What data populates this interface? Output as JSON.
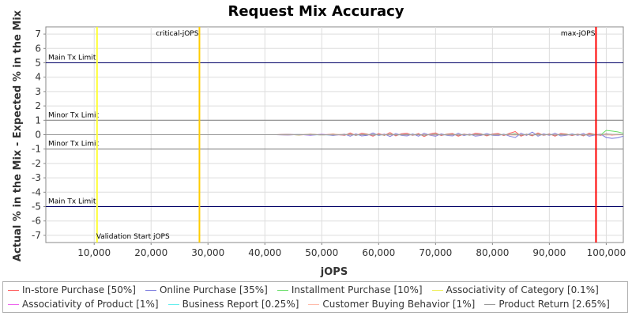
{
  "chart_data": {
    "type": "line",
    "title": "Request Mix Accuracy",
    "xlabel": "jOPS",
    "ylabel": "Actual % in the Mix - Expected % in the Mix",
    "xlim": [
      1500,
      103000
    ],
    "ylim": [
      -7.5,
      7.5
    ],
    "x_ticks": [
      10000,
      20000,
      30000,
      40000,
      50000,
      60000,
      70000,
      80000,
      90000,
      100000
    ],
    "x_tick_labels": [
      "10,000",
      "20,000",
      "30,000",
      "40,000",
      "50,000",
      "60,000",
      "70,000",
      "80,000",
      "90,000",
      "100,000"
    ],
    "y_ticks": [
      7,
      6,
      5,
      4,
      3,
      2,
      1,
      0,
      -1,
      -2,
      -3,
      -4,
      -5,
      -6,
      -7
    ],
    "y_tick_labels": [
      "7",
      "6",
      "5",
      "4",
      "3",
      "2",
      "1",
      "0",
      "-1",
      "-2",
      "-3",
      "-4",
      "-5",
      "-6",
      "-7"
    ],
    "grid": true,
    "legend_position": "bottom",
    "horizontal_lines": [
      {
        "label": "Main Tx Limit",
        "y": 5,
        "color": "#000066"
      },
      {
        "label": "Minor Tx Limit",
        "y": 1,
        "color": "#808080"
      },
      {
        "label": "Minor Tx Limit",
        "y": -1,
        "color": "#808080"
      },
      {
        "label": "Main Tx Limit",
        "y": -5,
        "color": "#000066"
      }
    ],
    "vertical_lines": [
      {
        "label": "Validation Start jOPS",
        "x": 10500,
        "color": "#ffff33"
      },
      {
        "label": "critical-jOPS",
        "x": 28500,
        "color": "#ffcc00"
      },
      {
        "label": "max-jOPS",
        "x": 98200,
        "color": "#ff0000"
      }
    ],
    "x": [
      1500,
      42000,
      44000,
      46000,
      48000,
      50000,
      52000,
      54000,
      55000,
      56000,
      57000,
      58000,
      59000,
      60000,
      61000,
      62000,
      63000,
      64000,
      65000,
      66000,
      67000,
      68000,
      69000,
      70000,
      71000,
      72000,
      73000,
      74000,
      75000,
      76000,
      77000,
      78000,
      79000,
      80000,
      81000,
      82000,
      83000,
      84000,
      85000,
      86000,
      87000,
      88000,
      89000,
      90000,
      91000,
      92000,
      93000,
      94000,
      95000,
      96000,
      97000,
      98000,
      99000,
      100000,
      101000,
      102000,
      103000
    ],
    "series": [
      {
        "name": "In-store Purchase [50%]",
        "color": "#ff5555",
        "values": [
          0,
          0,
          0.03,
          -0.02,
          0.04,
          -0.03,
          0.05,
          -0.05,
          0.12,
          -0.06,
          0.1,
          0.05,
          -0.1,
          0.08,
          -0.05,
          0.15,
          -0.08,
          0.06,
          0.1,
          -0.05,
          0.08,
          -0.12,
          0.05,
          0.12,
          -0.06,
          0.04,
          0.08,
          -0.1,
          0.05,
          -0.04,
          0.1,
          0.06,
          -0.08,
          0.05,
          0.08,
          -0.06,
          0.1,
          0.22,
          -0.1,
          0.05,
          -0.08,
          0.12,
          -0.05,
          0.06,
          -0.1,
          0.08,
          0.04,
          -0.06,
          0.05,
          -0.08,
          0.1,
          0.02,
          -0.05,
          0.06,
          -0.04,
          0.03,
          0
        ]
      },
      {
        "name": "Online Purchase [35%]",
        "color": "#7777dd",
        "values": [
          0,
          0,
          -0.03,
          0.02,
          -0.04,
          0.03,
          -0.05,
          0.05,
          -0.1,
          0.06,
          -0.08,
          -0.04,
          0.12,
          -0.06,
          0.05,
          -0.12,
          0.08,
          -0.05,
          -0.08,
          0.06,
          -0.1,
          0.1,
          -0.04,
          -0.1,
          0.06,
          -0.05,
          -0.08,
          0.1,
          -0.06,
          0.05,
          -0.1,
          -0.05,
          0.08,
          -0.05,
          -0.06,
          0.05,
          -0.1,
          -0.2,
          0.1,
          -0.05,
          0.18,
          -0.1,
          0.06,
          -0.05,
          0.1,
          -0.08,
          -0.04,
          0.06,
          -0.05,
          0.08,
          -0.1,
          -0.02,
          0.05,
          -0.2,
          -0.25,
          -0.22,
          -0.1
        ]
      },
      {
        "name": "Installment Purchase [10%]",
        "color": "#66dd66",
        "values": [
          0,
          0,
          0.01,
          -0.01,
          0.02,
          -0.01,
          0.02,
          -0.02,
          0.04,
          -0.03,
          0.03,
          0.02,
          -0.04,
          0.03,
          -0.02,
          0.05,
          -0.03,
          0.02,
          0.03,
          -0.02,
          0.03,
          -0.04,
          0.02,
          0.04,
          -0.02,
          0.01,
          0.03,
          -0.03,
          0.02,
          -0.01,
          0.03,
          0.02,
          -0.03,
          0.02,
          0.03,
          -0.02,
          0.03,
          0.06,
          -0.03,
          0.02,
          -0.03,
          0.04,
          -0.02,
          0.02,
          -0.03,
          0.03,
          0.01,
          -0.02,
          0.02,
          -0.03,
          0.03,
          0.01,
          -0.02,
          0.3,
          0.25,
          0.2,
          0.1
        ]
      },
      {
        "name": "Associativity of Category [0.1%]",
        "color": "#eeee55",
        "values": [
          0,
          0,
          0,
          0,
          0,
          0,
          0,
          0,
          0,
          0,
          0,
          0,
          0,
          0,
          0,
          0,
          0,
          0,
          0,
          0,
          0,
          0,
          0,
          0,
          0,
          0,
          0,
          0,
          0,
          0,
          0,
          0,
          0,
          0,
          0,
          0,
          0,
          0,
          0,
          0,
          0,
          0,
          0,
          0,
          0,
          0,
          0,
          0,
          0,
          0,
          0,
          0,
          0,
          0,
          0,
          0,
          0
        ]
      },
      {
        "name": "Associativity of Product [1%]",
        "color": "#ee66ee",
        "values": [
          0,
          0,
          0.01,
          0,
          -0.01,
          0.01,
          0,
          -0.01,
          0.02,
          -0.01,
          0.01,
          0,
          -0.02,
          0.01,
          0,
          0.02,
          -0.01,
          0.01,
          0.01,
          -0.01,
          0.01,
          -0.02,
          0.01,
          0.02,
          -0.01,
          0,
          0.01,
          -0.01,
          0.01,
          0,
          0.01,
          0.01,
          -0.01,
          0.01,
          0.01,
          -0.01,
          0.01,
          0.02,
          -0.01,
          0.01,
          -0.01,
          0.01,
          -0.01,
          0.01,
          -0.01,
          0.01,
          0,
          -0.01,
          0.01,
          -0.01,
          0.01,
          0,
          -0.01,
          0.01,
          -0.01,
          0,
          0
        ]
      },
      {
        "name": "Business Report [0.25%]",
        "color": "#66eeee",
        "values": [
          0,
          0,
          0,
          0.01,
          0,
          -0.01,
          0,
          0.01,
          0,
          -0.01,
          0,
          0.01,
          0,
          -0.01,
          0,
          0.01,
          0,
          -0.01,
          0,
          0.01,
          0,
          -0.01,
          0,
          0.01,
          0,
          -0.01,
          0,
          0.01,
          0,
          -0.01,
          0,
          0.01,
          0,
          -0.01,
          0,
          0.01,
          0,
          -0.01,
          0,
          0.01,
          0,
          -0.01,
          0,
          0.01,
          0,
          -0.01,
          0,
          0.01,
          0,
          -0.01,
          0,
          0.01,
          0,
          -0.01,
          0,
          0.01,
          0
        ]
      },
      {
        "name": "Customer Buying Behavior [1%]",
        "color": "#ffbbaa",
        "values": [
          0,
          0,
          -0.01,
          0.01,
          0.01,
          -0.01,
          0.01,
          0.02,
          -0.02,
          0.01,
          -0.01,
          0.01,
          0.02,
          -0.01,
          0.01,
          -0.02,
          0.01,
          -0.01,
          -0.01,
          0.01,
          -0.01,
          0.02,
          -0.01,
          -0.02,
          0.01,
          -0.01,
          -0.01,
          0.02,
          -0.01,
          0.01,
          -0.02,
          -0.01,
          0.01,
          -0.01,
          -0.01,
          0.01,
          -0.02,
          -0.03,
          0.02,
          -0.01,
          0.02,
          -0.02,
          0.01,
          -0.01,
          0.02,
          -0.01,
          -0.01,
          0.01,
          -0.01,
          0.01,
          -0.02,
          0,
          0.01,
          -0.02,
          -0.02,
          -0.01,
          0
        ]
      },
      {
        "name": "Product Return [2.65%]",
        "color": "#999999",
        "values": [
          0,
          0,
          0.01,
          0,
          0.01,
          0,
          -0.01,
          0,
          0.02,
          -0.01,
          0.01,
          -0.01,
          0.02,
          0,
          -0.01,
          0.02,
          -0.01,
          0.01,
          0,
          -0.01,
          0.01,
          -0.02,
          0.01,
          0.01,
          -0.01,
          0.01,
          0.01,
          -0.02,
          0.01,
          -0.01,
          0.01,
          0,
          -0.01,
          0.01,
          0.01,
          -0.01,
          0.02,
          0.03,
          -0.02,
          0.01,
          -0.02,
          0.02,
          -0.01,
          0.01,
          -0.02,
          0.01,
          0,
          -0.01,
          0.01,
          -0.02,
          0.02,
          0,
          -0.01,
          0.05,
          0.03,
          0.02,
          0
        ]
      }
    ]
  }
}
